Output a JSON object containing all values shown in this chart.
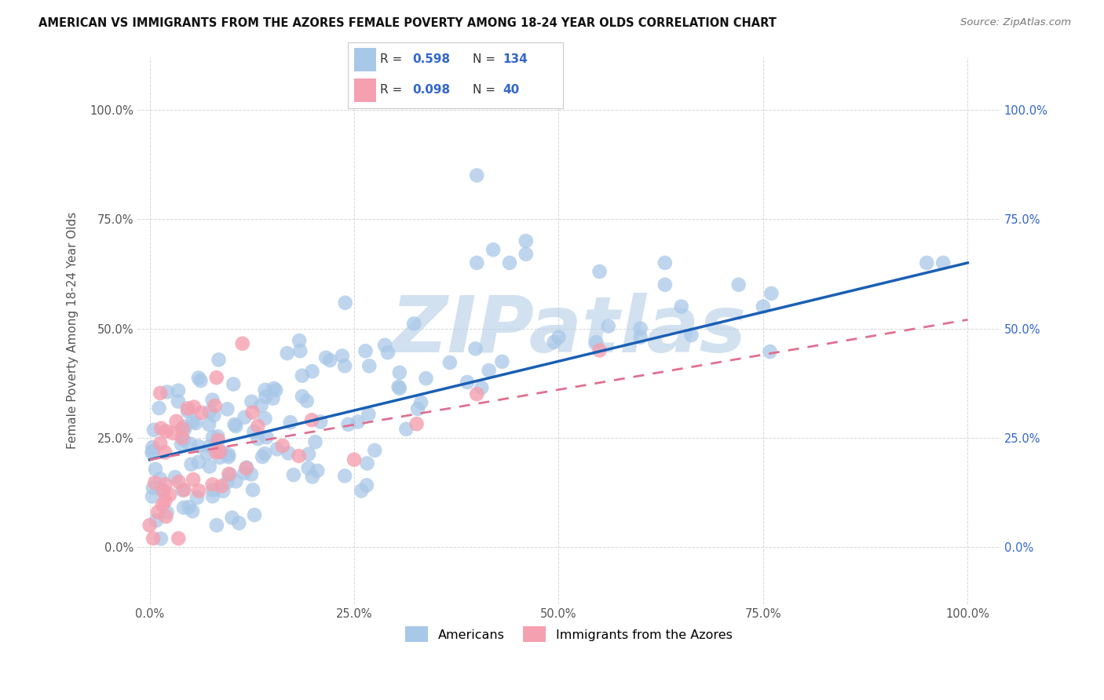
{
  "title": "AMERICAN VS IMMIGRANTS FROM THE AZORES FEMALE POVERTY AMONG 18-24 YEAR OLDS CORRELATION CHART",
  "source": "Source: ZipAtlas.com",
  "ylabel": "Female Poverty Among 18-24 Year Olds",
  "xlim": [
    0,
    1
  ],
  "ylim": [
    0,
    1
  ],
  "r_american": 0.598,
  "n_american": 134,
  "r_azores": 0.098,
  "n_azores": 40,
  "color_american": "#a8c8e8",
  "color_azores": "#f4a0b0",
  "line_color_american": "#1a5fb4",
  "line_color_azores": "#e07090",
  "watermark": "ZIPatlas",
  "watermark_color_r": 180,
  "watermark_color_g": 205,
  "watermark_color_b": 230,
  "legend_labels": [
    "Americans",
    "Immigrants from the Azores"
  ],
  "am_line_x0": 0.0,
  "am_line_y0": 0.2,
  "am_line_x1": 1.0,
  "am_line_y1": 0.65,
  "az_line_x0": 0.0,
  "az_line_y0": 0.2,
  "az_line_x1": 1.0,
  "az_line_y1": 0.52
}
